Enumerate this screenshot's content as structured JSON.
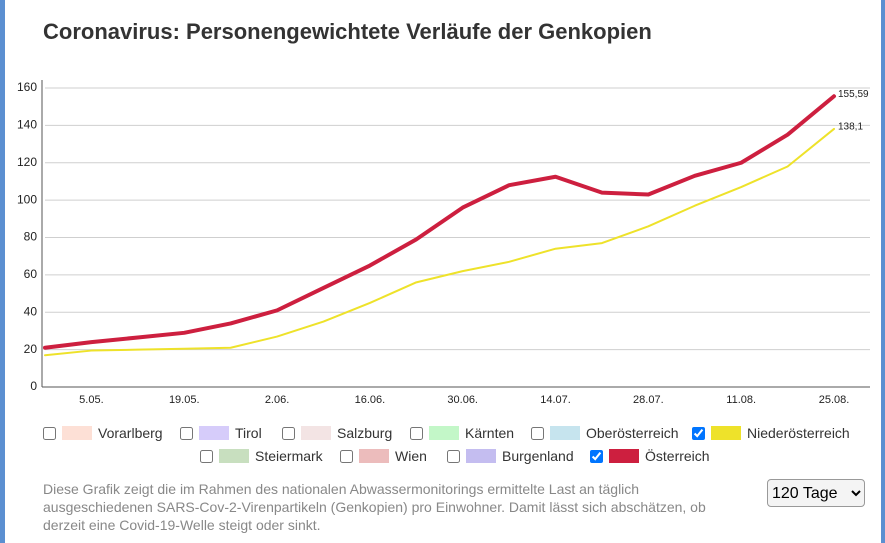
{
  "chart_data": {
    "type": "line",
    "title": "Coronavirus: Personengewichtete Verläufe der Genkopien",
    "categories": [
      null,
      "5.05.",
      null,
      "19.05.",
      null,
      "2.06.",
      null,
      "16.06.",
      null,
      "30.06.",
      null,
      "14.07.",
      null,
      "28.07.",
      null,
      "11.08.",
      null,
      "25.08."
    ],
    "ylim": [
      0,
      160
    ],
    "yticks": [
      0,
      20,
      40,
      60,
      80,
      100,
      120,
      140,
      160
    ],
    "grid": true,
    "series": [
      {
        "name": "Vorarlberg",
        "color": "#fde0d6",
        "checked": false
      },
      {
        "name": "Tirol",
        "color": "#d6ccfa",
        "checked": false
      },
      {
        "name": "Salzburg",
        "color": "#f3e4e4",
        "checked": false
      },
      {
        "name": "Kärnten",
        "color": "#c3f7c8",
        "checked": false
      },
      {
        "name": "Oberösterreich",
        "color": "#c6e4ee",
        "checked": false
      },
      {
        "name": "Niederösterreich",
        "color": "#eee22a",
        "checked": true,
        "values": [
          17,
          19.5,
          20,
          20.5,
          21,
          27,
          35,
          45,
          56,
          62,
          67,
          74,
          77,
          86,
          97,
          107,
          118,
          138.1
        ],
        "value_labels": [
          null,
          null,
          null,
          null,
          null,
          null,
          null,
          null,
          null,
          null,
          null,
          null,
          null,
          null,
          null,
          null,
          null,
          "138,1"
        ]
      },
      {
        "name": "Steiermark",
        "color": "#c8dfbf",
        "checked": false
      },
      {
        "name": "Wien",
        "color": "#ecbcbc",
        "checked": false
      },
      {
        "name": "Burgenland",
        "color": "#c4bdf0",
        "checked": false
      },
      {
        "name": "Österreich",
        "color": "#cd1f3f",
        "checked": true,
        "values": [
          21,
          24,
          26.5,
          29,
          34,
          41,
          53,
          65,
          79,
          96,
          108,
          112.5,
          104,
          103,
          113,
          120,
          135,
          155.59
        ],
        "value_labels": [
          null,
          null,
          null,
          null,
          null,
          null,
          null,
          null,
          null,
          null,
          null,
          null,
          null,
          null,
          null,
          null,
          null,
          "155,59"
        ]
      }
    ],
    "description": "Diese Grafik zeigt die im Rahmen des nationalen Abwassermonitorings ermittelte Last an täglich ausgeschiedenen SARS-Cov-2-Virenpartikeln (Genkopien) pro Einwohner. Damit lässt sich abschätzen, ob derzeit eine Covid-19-Welle steigt oder sinkt.",
    "period_options": [
      "120 Tage"
    ]
  }
}
